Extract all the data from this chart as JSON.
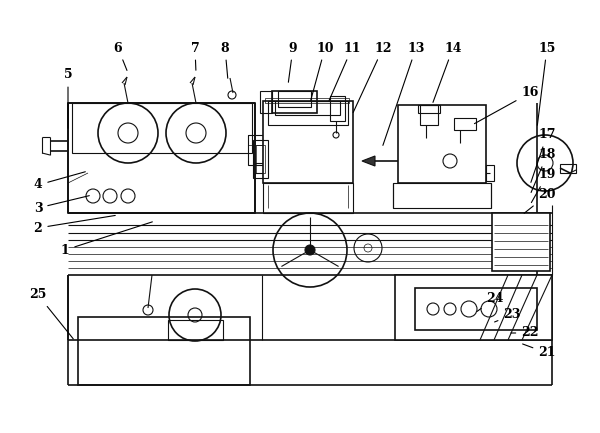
{
  "background": "#ffffff",
  "line_color": "#111111",
  "figsize": [
    6.0,
    4.33
  ],
  "dpi": 100,
  "annotations": [
    [
      "1",
      65,
      183,
      155,
      212
    ],
    [
      "2",
      38,
      205,
      118,
      218
    ],
    [
      "3",
      38,
      225,
      92,
      238
    ],
    [
      "4",
      38,
      248,
      88,
      262
    ],
    [
      "5",
      68,
      358,
      68,
      302
    ],
    [
      "6",
      118,
      385,
      128,
      360
    ],
    [
      "7",
      195,
      385,
      196,
      360
    ],
    [
      "8",
      225,
      385,
      228,
      352
    ],
    [
      "9",
      293,
      385,
      288,
      348
    ],
    [
      "10",
      325,
      385,
      310,
      330
    ],
    [
      "11",
      352,
      385,
      328,
      330
    ],
    [
      "12",
      383,
      385,
      352,
      318
    ],
    [
      "13",
      416,
      385,
      382,
      285
    ],
    [
      "14",
      453,
      385,
      432,
      328
    ],
    [
      "15",
      547,
      385,
      537,
      305
    ],
    [
      "16",
      530,
      340,
      472,
      308
    ],
    [
      "17",
      547,
      298,
      530,
      248
    ],
    [
      "18",
      547,
      278,
      530,
      238
    ],
    [
      "19",
      547,
      258,
      530,
      228
    ],
    [
      "20",
      547,
      238,
      522,
      218
    ],
    [
      "21",
      547,
      80,
      520,
      90
    ],
    [
      "22",
      530,
      100,
      508,
      100
    ],
    [
      "23",
      512,
      118,
      492,
      110
    ],
    [
      "24",
      495,
      135,
      475,
      120
    ],
    [
      "25",
      38,
      138,
      75,
      92
    ]
  ]
}
